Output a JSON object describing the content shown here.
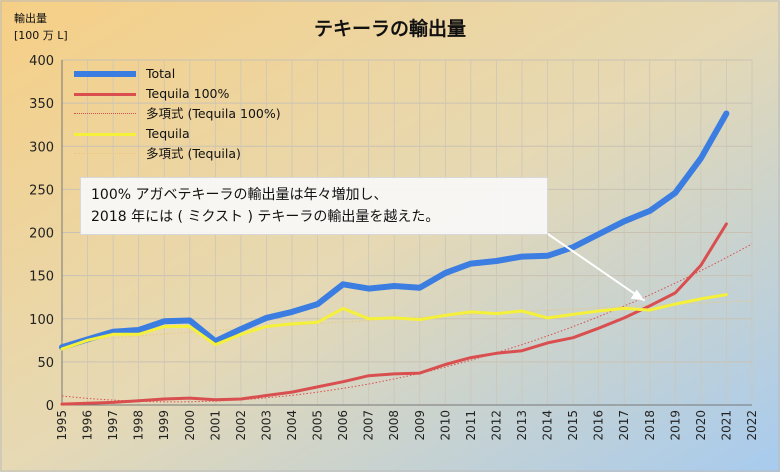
{
  "title": "テキーラの輸出量",
  "unit_line1": "輸出量",
  "unit_line2": "[100 万 L]",
  "legend": [
    {
      "label": "Total",
      "color": "#3b7de0",
      "style": "thick"
    },
    {
      "label": "Tequila 100%",
      "color": "#d94f4f",
      "style": "solid"
    },
    {
      "label": "多項式  (Tequila 100%)",
      "color": "#d94f4f",
      "style": "dotted"
    },
    {
      "label": "Tequila",
      "color": "#f5f03a",
      "style": "solid"
    },
    {
      "label": "多項式  (Tequila)",
      "color": "#e8c880",
      "style": "dotted"
    }
  ],
  "annotation": {
    "line1": "100% アガベテキーラの輸出量は年々増加し、",
    "line2": "2018 年には ( ミクスト ) テキーラの輸出量を越えた。"
  },
  "chart_data": {
    "type": "line",
    "title": "テキーラの輸出量",
    "ylabel": "輸出量 [100 万 L]",
    "xlabel": "",
    "xlim": [
      1995,
      2022
    ],
    "ylim": [
      0,
      400
    ],
    "x_ticks": [
      1995,
      1996,
      1997,
      1998,
      1999,
      2000,
      2001,
      2002,
      2003,
      2004,
      2005,
      2006,
      2007,
      2008,
      2009,
      2010,
      2011,
      2012,
      2013,
      2014,
      2015,
      2016,
      2017,
      2018,
      2019,
      2020,
      2021,
      2022
    ],
    "y_ticks": [
      0,
      50,
      100,
      150,
      200,
      250,
      300,
      350,
      400
    ],
    "grid": true,
    "legend_position": "top-left",
    "x": [
      1995,
      1996,
      1997,
      1998,
      1999,
      2000,
      2001,
      2002,
      2003,
      2004,
      2005,
      2006,
      2007,
      2008,
      2009,
      2010,
      2011,
      2012,
      2013,
      2014,
      2015,
      2016,
      2017,
      2018,
      2019,
      2020,
      2021
    ],
    "series": [
      {
        "name": "Total",
        "color": "#3b7de0",
        "values": [
          67,
          76,
          85,
          87,
          97,
          98,
          74,
          88,
          101,
          108,
          117,
          140,
          135,
          138,
          136,
          153,
          164,
          167,
          172,
          173,
          183,
          198,
          213,
          225,
          246,
          286,
          338
        ]
      },
      {
        "name": "Tequila 100%",
        "color": "#d94f4f",
        "values": [
          1,
          2,
          3,
          5,
          7,
          8,
          6,
          7,
          11,
          15,
          21,
          27,
          34,
          36,
          37,
          47,
          55,
          60,
          63,
          72,
          78,
          89,
          101,
          115,
          130,
          162,
          210
        ]
      },
      {
        "name": "Tequila",
        "color": "#f5f03a",
        "values": [
          65,
          75,
          82,
          82,
          91,
          91,
          70,
          82,
          91,
          94,
          96,
          112,
          100,
          101,
          99,
          104,
          108,
          106,
          109,
          101,
          105,
          109,
          112,
          110,
          117,
          123,
          128
        ]
      }
    ],
    "trendlines": [
      {
        "name": "多項式  (Tequila 100%)",
        "of": "Tequila 100%",
        "color": "#d94f4f"
      },
      {
        "name": "多項式  (Tequila)",
        "of": "Tequila",
        "color": "#e8c880"
      }
    ]
  }
}
